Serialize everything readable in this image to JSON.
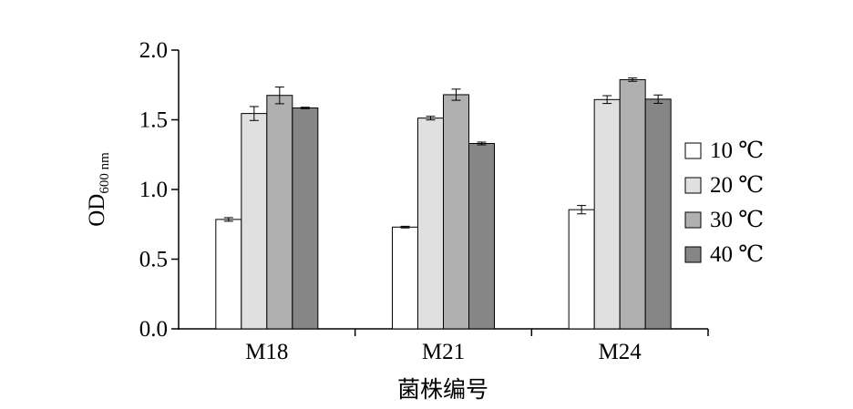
{
  "chart_data": {
    "type": "bar",
    "title": "",
    "xlabel": "菌株编号",
    "ylabel": {
      "main": "OD",
      "subscript": "600 nm"
    },
    "categories": [
      "M18",
      "M21",
      "M24"
    ],
    "ylim": [
      0,
      2.0
    ],
    "yticks": [
      "0.0",
      "0.5",
      "1.0",
      "1.5",
      "2.0"
    ],
    "grid": false,
    "legend_position": "right",
    "series": [
      {
        "name": "10 ℃",
        "values": [
          0.785,
          0.73,
          0.855
        ],
        "errors": [
          0.013,
          0.006,
          0.03
        ],
        "color": "#ffffff"
      },
      {
        "name": "20 ℃",
        "values": [
          1.545,
          1.512,
          1.645
        ],
        "errors": [
          0.05,
          0.013,
          0.028
        ],
        "color": "#e0e0e0"
      },
      {
        "name": "30 ℃",
        "values": [
          1.675,
          1.68,
          1.788
        ],
        "errors": [
          0.06,
          0.04,
          0.012
        ],
        "color": "#b0b0b0"
      },
      {
        "name": "40 ℃",
        "values": [
          1.585,
          1.33,
          1.648
        ],
        "errors": [
          0.005,
          0.01,
          0.03
        ],
        "color": "#868686"
      }
    ]
  }
}
